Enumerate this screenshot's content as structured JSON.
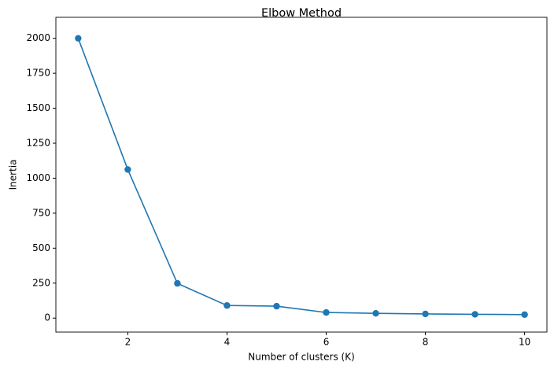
{
  "chart_data": {
    "type": "line",
    "title": "Elbow Method",
    "x_label": "Number of clusters (K)",
    "y_label": "Inertia",
    "x": [
      1,
      2,
      3,
      4,
      5,
      6,
      7,
      8,
      9,
      10
    ],
    "series": [
      {
        "name": "Inertia",
        "color": "#1f77b4",
        "values": [
          2000,
          1062,
          248,
          90,
          85,
          40,
          34,
          30,
          27,
          25
        ]
      }
    ],
    "xlim": [
      0.55,
      10.45
    ],
    "xticks": [
      2,
      4,
      6,
      8,
      10
    ],
    "ylim": [
      -100,
      2150
    ],
    "yticks": [
      0,
      250,
      500,
      750,
      1000,
      1250,
      1500,
      1750,
      2000
    ],
    "grid": false,
    "markers": true
  }
}
